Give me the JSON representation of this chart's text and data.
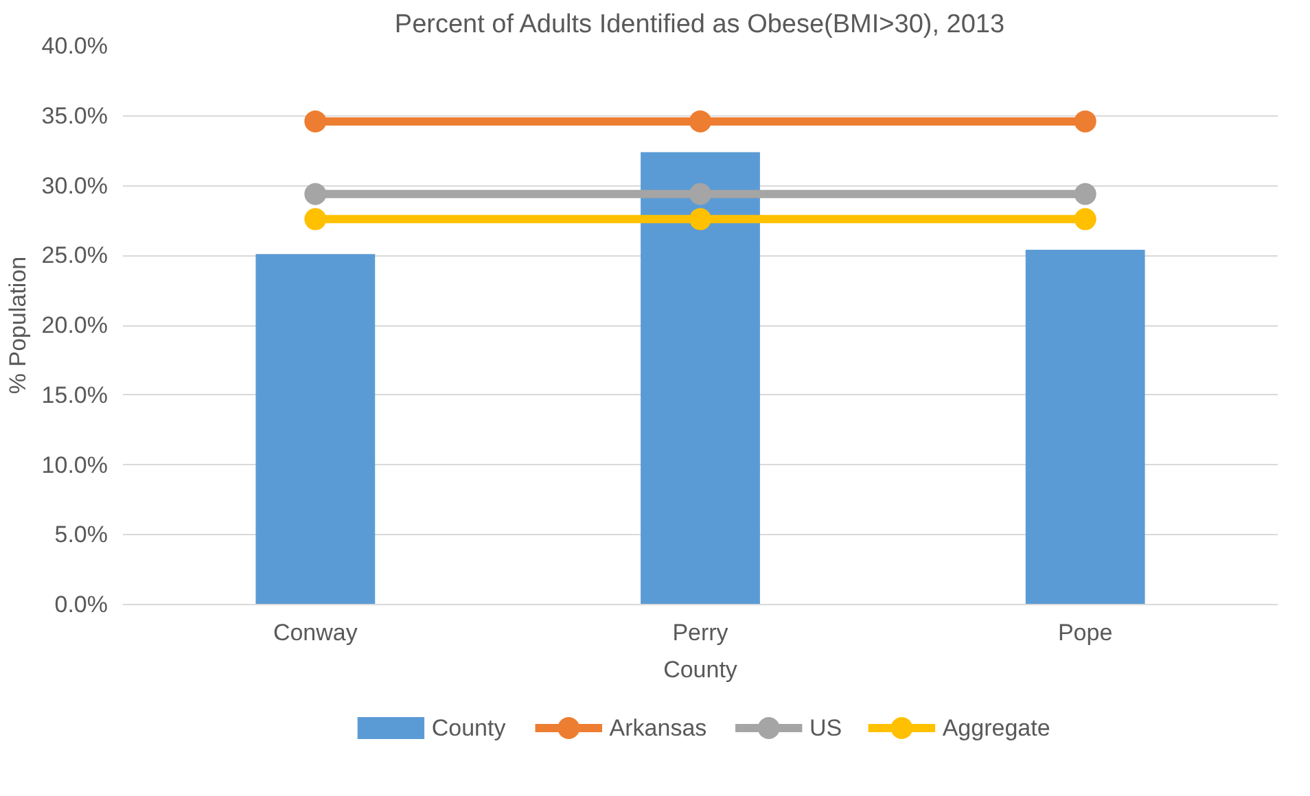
{
  "chart_data": {
    "type": "bar",
    "title": "Percent of Adults Identified as Obese(BMI>30), 2013",
    "xlabel": "County",
    "ylabel": "% Population",
    "categories": [
      "Conway",
      "Perry",
      "Pope"
    ],
    "series": [
      {
        "name": "County",
        "color": "#5b9bd5",
        "values": [
          25.1,
          32.4,
          25.4
        ]
      },
      {
        "name": "Arkansas",
        "type": "line",
        "color": "#ed7d31",
        "values": [
          34.6,
          34.6,
          34.6
        ]
      },
      {
        "name": "US",
        "type": "line",
        "color": "#a5a5a5",
        "values": [
          29.4,
          29.4,
          29.4
        ]
      },
      {
        "name": "Aggregate",
        "type": "line",
        "color": "#ffc000",
        "values": [
          27.6,
          27.6,
          27.6
        ]
      }
    ],
    "ylim": [
      0,
      40
    ],
    "yticks": [
      {
        "value": 0,
        "label": "0.0%"
      },
      {
        "value": 5,
        "label": "5.0%"
      },
      {
        "value": 10,
        "label": "10.0%"
      },
      {
        "value": 15,
        "label": "15.0%"
      },
      {
        "value": 20,
        "label": "20.0%"
      },
      {
        "value": 25,
        "label": "25.0%"
      },
      {
        "value": 30,
        "label": "30.0%"
      },
      {
        "value": 35,
        "label": "35.0%"
      },
      {
        "value": 40,
        "label": "40.0%"
      }
    ],
    "grid": "y",
    "legend": "bottom",
    "marker": "circle",
    "line_style": "solid"
  }
}
